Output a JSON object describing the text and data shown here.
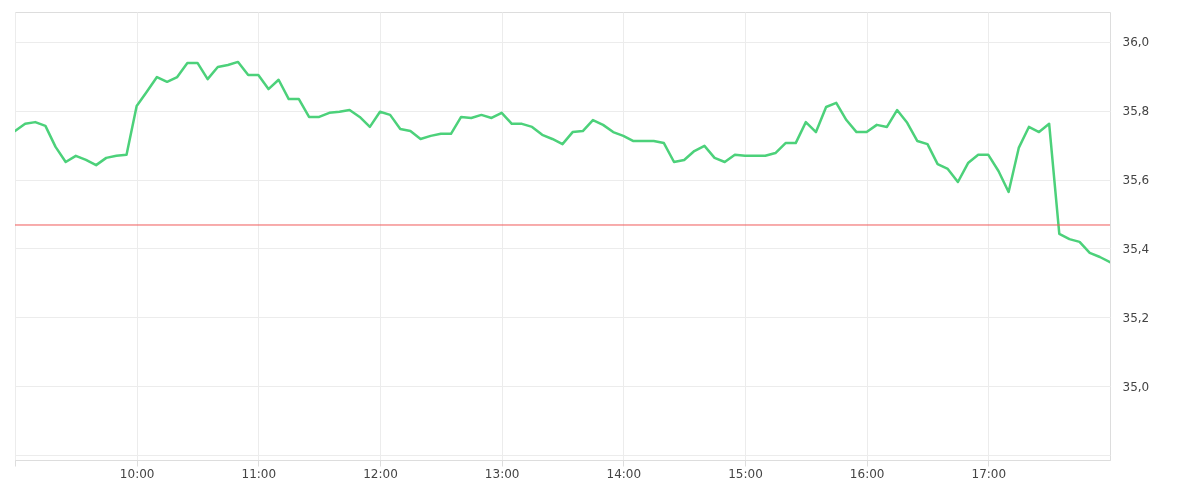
{
  "chart_data": {
    "type": "line",
    "x": [
      9,
      9.0833,
      9.1667,
      9.25,
      9.3333,
      9.4167,
      9.5,
      9.5833,
      9.6667,
      9.75,
      9.8333,
      9.9167,
      10,
      10.0833,
      10.1667,
      10.25,
      10.3333,
      10.4167,
      10.5,
      10.5833,
      10.6667,
      10.75,
      10.8333,
      10.9167,
      11,
      11.0833,
      11.1667,
      11.25,
      11.3333,
      11.4167,
      11.5,
      11.5833,
      11.6667,
      11.75,
      11.8333,
      11.9167,
      12,
      12.0833,
      12.1667,
      12.25,
      12.3333,
      12.4167,
      12.5,
      12.5833,
      12.6667,
      12.75,
      12.8333,
      12.9167,
      13,
      13.0833,
      13.1667,
      13.25,
      13.3333,
      13.4167,
      13.5,
      13.5833,
      13.6667,
      13.75,
      13.8333,
      13.9167,
      14,
      14.0833,
      14.1667,
      14.25,
      14.3333,
      14.4167,
      14.5,
      14.5833,
      14.6667,
      14.75,
      14.8333,
      14.9167,
      15,
      15.0833,
      15.1667,
      15.25,
      15.3333,
      15.4167,
      15.5,
      15.5833,
      15.6667,
      15.75,
      15.8333,
      15.9167,
      16,
      16.0833,
      16.1667,
      16.25,
      16.3333,
      16.4167,
      16.5,
      16.5833,
      16.6667,
      16.75,
      16.8333,
      16.9167,
      17,
      17.0833,
      17.1667,
      17.25,
      17.3333,
      17.4167,
      17.5,
      17.5833,
      17.6667,
      17.75,
      17.8333,
      17.9167,
      18
    ],
    "series": [
      {
        "color": "#4cd17a",
        "values": [
          35.741,
          35.762,
          35.767,
          35.756,
          35.695,
          35.651,
          35.669,
          35.657,
          35.642,
          35.663,
          35.669,
          35.672,
          35.814,
          35.855,
          35.898,
          35.884,
          35.898,
          35.939,
          35.939,
          35.892,
          35.927,
          35.933,
          35.942,
          35.904,
          35.904,
          35.863,
          35.89,
          35.834,
          35.834,
          35.782,
          35.782,
          35.794,
          35.797,
          35.802,
          35.782,
          35.753,
          35.797,
          35.788,
          35.747,
          35.741,
          35.718,
          35.727,
          35.733,
          35.733,
          35.782,
          35.779,
          35.788,
          35.779,
          35.794,
          35.762,
          35.762,
          35.753,
          35.73,
          35.718,
          35.703,
          35.738,
          35.741,
          35.773,
          35.759,
          35.738,
          35.727,
          35.712,
          35.712,
          35.712,
          35.706,
          35.651,
          35.657,
          35.683,
          35.698,
          35.663,
          35.651,
          35.672,
          35.669,
          35.669,
          35.669,
          35.677,
          35.706,
          35.706,
          35.767,
          35.738,
          35.811,
          35.823,
          35.773,
          35.738,
          35.738,
          35.759,
          35.753,
          35.802,
          35.765,
          35.712,
          35.703,
          35.645,
          35.631,
          35.593,
          35.648,
          35.672,
          35.672,
          35.625,
          35.564,
          35.692,
          35.753,
          35.738,
          35.762,
          35.442,
          35.427,
          35.419,
          35.387,
          35.375,
          35.36
        ]
      }
    ],
    "xlim": [
      9,
      18
    ],
    "xticks": [
      {
        "value": 9,
        "label": null
      },
      {
        "value": 10,
        "label": "10:00"
      },
      {
        "value": 11,
        "label": "11:00"
      },
      {
        "value": 12,
        "label": "12:00"
      },
      {
        "value": 13,
        "label": "13:00"
      },
      {
        "value": 14,
        "label": "14:00"
      },
      {
        "value": 15,
        "label": "15:00"
      },
      {
        "value": 16,
        "label": "16:00"
      },
      {
        "value": 17,
        "label": "17:00"
      }
    ],
    "ylim": [
      34.785,
      36.087
    ],
    "yticks": [
      {
        "value": 34.8,
        "label": null
      },
      {
        "value": 35.0,
        "label": "35,0"
      },
      {
        "value": 35.2,
        "label": "35,2"
      },
      {
        "value": 35.4,
        "label": "35,4"
      },
      {
        "value": 35.6,
        "label": "35,6"
      },
      {
        "value": 35.8,
        "label": "35,8"
      },
      {
        "value": 36.0,
        "label": "36,0"
      }
    ],
    "ref_lines": [
      {
        "axis": "y",
        "value": 35.468,
        "color": "#f05a5a"
      }
    ],
    "grid": true,
    "marker": "none",
    "line_style": "solid"
  }
}
